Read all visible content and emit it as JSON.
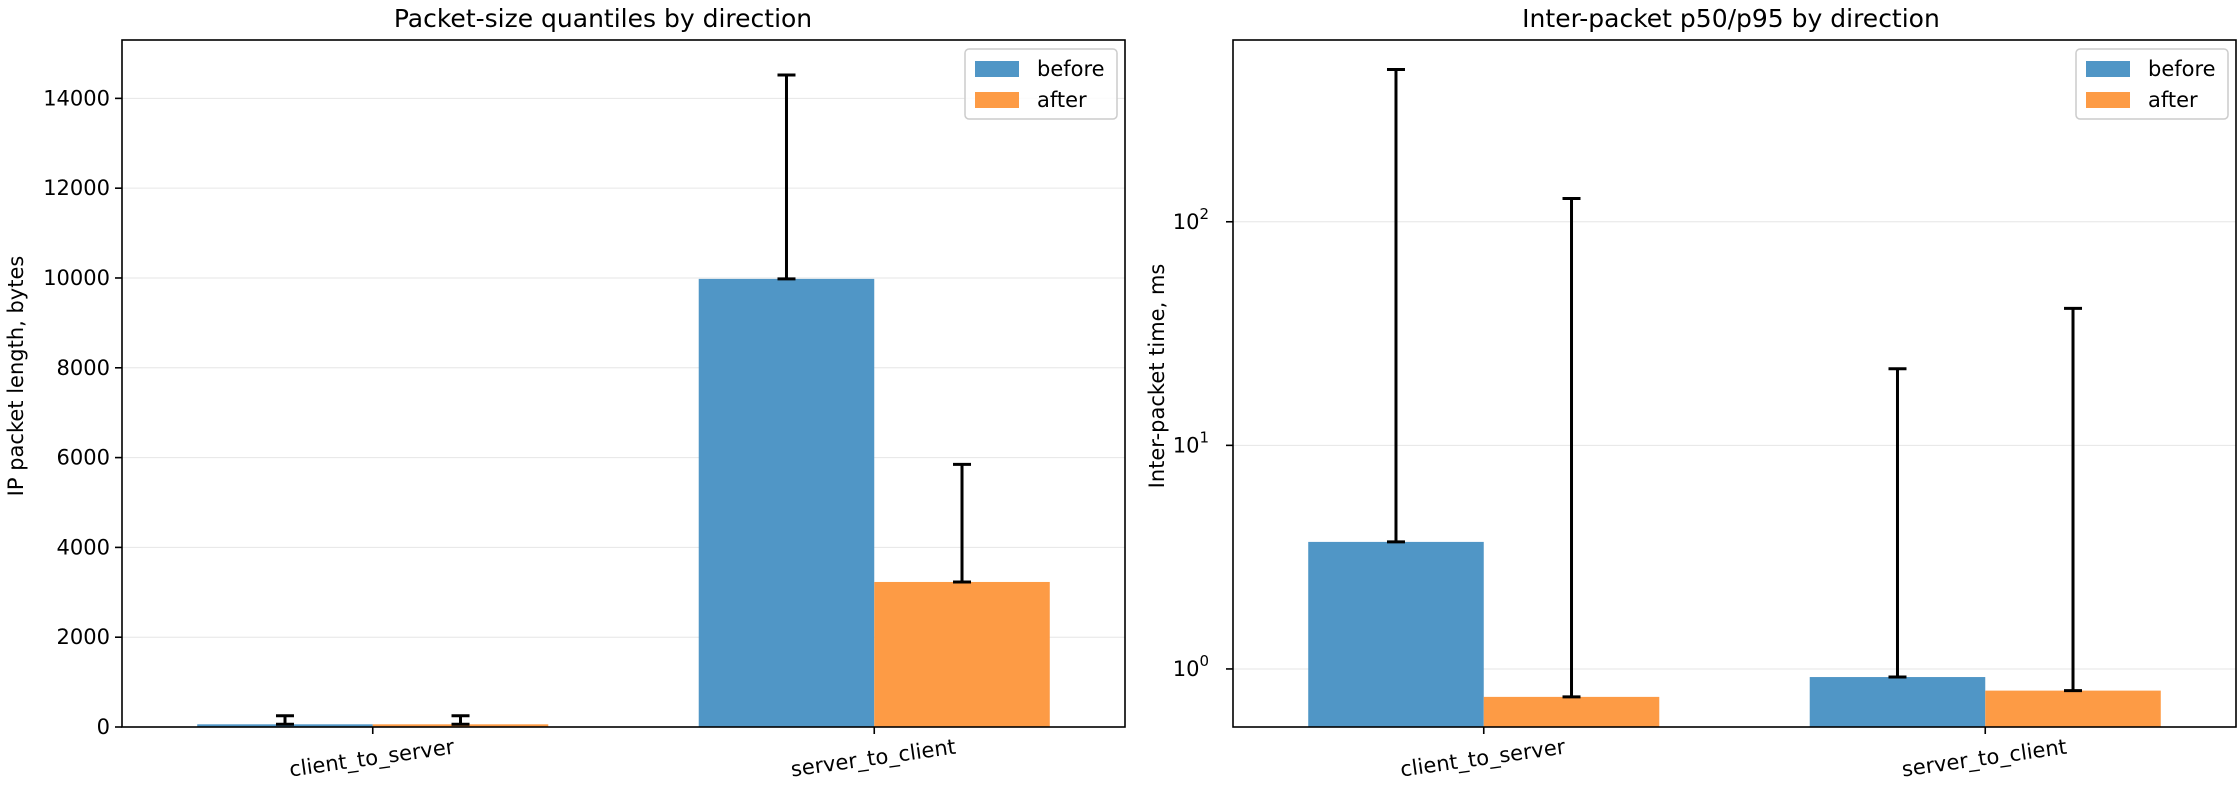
{
  "colors": {
    "before": "#5096c6",
    "after": "#fd9b45"
  },
  "chart_data": [
    {
      "type": "bar",
      "title": "Packet-size quantiles by direction",
      "xlabel": "",
      "ylabel": "IP packet length, bytes",
      "ylim": [
        0,
        15300
      ],
      "yscale": "linear",
      "yticks": [
        0,
        2000,
        4000,
        6000,
        8000,
        10000,
        12000,
        14000
      ],
      "ytick_labels": [
        "0",
        "2000",
        "4000",
        "6000",
        "8000",
        "10000",
        "12000",
        "14000"
      ],
      "grid": "y",
      "legend": "top-right",
      "categories": [
        "client_to_server",
        "server_to_client"
      ],
      "series": [
        {
          "name": "before",
          "values": [
            60,
            9980
          ],
          "upper": [
            250,
            14520
          ]
        },
        {
          "name": "after",
          "values": [
            60,
            3230
          ],
          "upper": [
            250,
            5850
          ]
        }
      ]
    },
    {
      "type": "bar",
      "title": "Inter-packet p50/p95 by direction",
      "xlabel": "",
      "ylabel": "Inter-packet time, ms",
      "ylim": [
        0.55,
        650
      ],
      "yscale": "log",
      "yticks": [
        1,
        10,
        100
      ],
      "ytick_labels": [
        "10",
        "10",
        "10"
      ],
      "ytick_exponents": [
        "0",
        "1",
        "2"
      ],
      "grid": "y",
      "legend": "top-right",
      "categories": [
        "client_to_server",
        "server_to_client"
      ],
      "series": [
        {
          "name": "before",
          "values": [
            3.7,
            0.92
          ],
          "upper": [
            480,
            22
          ]
        },
        {
          "name": "after",
          "values": [
            0.75,
            0.8
          ],
          "upper": [
            127,
            41
          ]
        }
      ]
    }
  ]
}
